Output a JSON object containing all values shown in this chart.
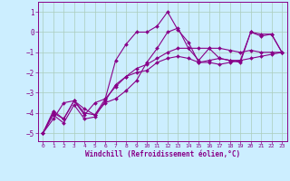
{
  "xlabel": "Windchill (Refroidissement éolien,°C)",
  "ylabel": "",
  "bg_color": "#cceeff",
  "grid_color": "#aaccbb",
  "line_color": "#880088",
  "xlim": [
    -0.5,
    23.5
  ],
  "ylim": [
    -5.4,
    1.5
  ],
  "xticks": [
    0,
    1,
    2,
    3,
    4,
    5,
    6,
    7,
    8,
    9,
    10,
    11,
    12,
    13,
    14,
    15,
    16,
    17,
    18,
    19,
    20,
    21,
    22,
    23
  ],
  "yticks": [
    -5,
    -4,
    -3,
    -2,
    -1,
    0,
    1
  ],
  "series": [
    [
      [
        0,
        -5.0
      ],
      [
        1,
        -4.3
      ],
      [
        2,
        -3.5
      ],
      [
        3,
        -3.4
      ],
      [
        4,
        -4.1
      ],
      [
        5,
        -3.5
      ],
      [
        6,
        -3.3
      ],
      [
        7,
        -2.7
      ],
      [
        8,
        -2.2
      ],
      [
        9,
        -2.0
      ],
      [
        10,
        -1.9
      ],
      [
        11,
        -1.5
      ],
      [
        12,
        -1.3
      ],
      [
        13,
        -1.2
      ],
      [
        14,
        -1.3
      ],
      [
        15,
        -1.5
      ],
      [
        16,
        -1.5
      ],
      [
        17,
        -1.6
      ],
      [
        18,
        -1.5
      ],
      [
        19,
        -1.4
      ],
      [
        20,
        -1.3
      ],
      [
        21,
        -1.2
      ],
      [
        22,
        -1.1
      ],
      [
        23,
        -1.0
      ]
    ],
    [
      [
        0,
        -5.0
      ],
      [
        1,
        -3.9
      ],
      [
        2,
        -4.3
      ],
      [
        3,
        -3.4
      ],
      [
        4,
        -4.0
      ],
      [
        5,
        -4.1
      ],
      [
        6,
        -3.5
      ],
      [
        7,
        -3.3
      ],
      [
        8,
        -2.9
      ],
      [
        9,
        -2.4
      ],
      [
        10,
        -1.5
      ],
      [
        11,
        -0.8
      ],
      [
        12,
        0.0
      ],
      [
        13,
        0.2
      ],
      [
        14,
        -0.8
      ],
      [
        15,
        -1.4
      ],
      [
        16,
        -0.8
      ],
      [
        17,
        -1.3
      ],
      [
        18,
        -1.4
      ],
      [
        19,
        -1.4
      ],
      [
        20,
        0.0
      ],
      [
        21,
        -0.2
      ],
      [
        22,
        -0.1
      ],
      [
        23,
        -1.0
      ]
    ],
    [
      [
        0,
        -5.0
      ],
      [
        1,
        -4.0
      ],
      [
        2,
        -4.3
      ],
      [
        3,
        -3.4
      ],
      [
        4,
        -3.8
      ],
      [
        5,
        -4.1
      ],
      [
        6,
        -3.3
      ],
      [
        7,
        -1.4
      ],
      [
        8,
        -0.6
      ],
      [
        9,
        0.0
      ],
      [
        10,
        0.0
      ],
      [
        11,
        0.3
      ],
      [
        12,
        1.0
      ],
      [
        13,
        0.1
      ],
      [
        14,
        -0.5
      ],
      [
        15,
        -1.5
      ],
      [
        16,
        -1.4
      ],
      [
        17,
        -1.3
      ],
      [
        18,
        -1.4
      ],
      [
        19,
        -1.5
      ],
      [
        20,
        0.0
      ],
      [
        21,
        -0.1
      ],
      [
        22,
        -0.1
      ],
      [
        23,
        -1.0
      ]
    ],
    [
      [
        0,
        -5.0
      ],
      [
        1,
        -4.1
      ],
      [
        2,
        -4.5
      ],
      [
        3,
        -3.6
      ],
      [
        4,
        -4.3
      ],
      [
        5,
        -4.2
      ],
      [
        6,
        -3.4
      ],
      [
        7,
        -2.6
      ],
      [
        8,
        -2.2
      ],
      [
        9,
        -1.8
      ],
      [
        10,
        -1.6
      ],
      [
        11,
        -1.3
      ],
      [
        12,
        -1.0
      ],
      [
        13,
        -0.8
      ],
      [
        14,
        -0.8
      ],
      [
        15,
        -0.8
      ],
      [
        16,
        -0.8
      ],
      [
        17,
        -0.8
      ],
      [
        18,
        -0.9
      ],
      [
        19,
        -1.0
      ],
      [
        20,
        -0.9
      ],
      [
        21,
        -1.0
      ],
      [
        22,
        -1.0
      ],
      [
        23,
        -1.0
      ]
    ]
  ]
}
